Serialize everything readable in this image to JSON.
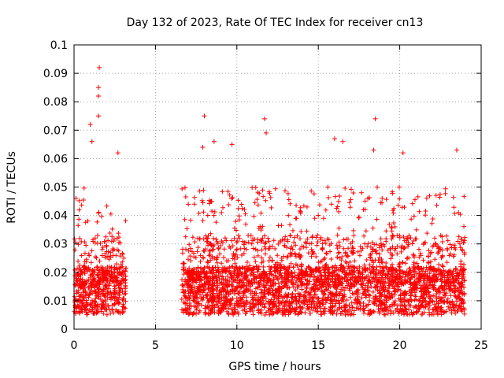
{
  "chart_data": {
    "type": "scatter",
    "title": "Day 132 of 2023, Rate Of TEC Index for receiver cn13",
    "xlabel": "GPS time / hours",
    "ylabel": "ROTI / TECUs",
    "xlim": [
      0,
      25
    ],
    "ylim": [
      0,
      0.1
    ],
    "xticks": [
      0,
      5,
      10,
      15,
      20,
      25
    ],
    "xtick_labels": [
      "0",
      "5",
      "10",
      "15",
      "20",
      "25"
    ],
    "yticks": [
      0,
      0.01,
      0.02,
      0.03,
      0.04,
      0.05,
      0.06,
      0.07,
      0.08,
      0.09,
      0.1
    ],
    "ytick_labels": [
      "0",
      "0.01",
      "0.02",
      "0.03",
      "0.04",
      "0.05",
      "0.06",
      "0.07",
      "0.08",
      "0.09",
      "0.1"
    ],
    "grid": true,
    "marker": "plus",
    "color": "#ff0000",
    "data_segments": [
      {
        "x_start": 0.0,
        "x_end": 3.2
      },
      {
        "x_start": 6.6,
        "x_end": 24.0
      }
    ],
    "highlight_points": [
      {
        "x": 1.55,
        "y": 0.092
      },
      {
        "x": 1.5,
        "y": 0.085
      },
      {
        "x": 1.5,
        "y": 0.082
      },
      {
        "x": 1.0,
        "y": 0.072
      },
      {
        "x": 1.1,
        "y": 0.066
      },
      {
        "x": 1.5,
        "y": 0.075
      },
      {
        "x": 2.7,
        "y": 0.062
      },
      {
        "x": 8.0,
        "y": 0.075
      },
      {
        "x": 7.9,
        "y": 0.064
      },
      {
        "x": 8.6,
        "y": 0.066
      },
      {
        "x": 9.7,
        "y": 0.065
      },
      {
        "x": 11.7,
        "y": 0.074
      },
      {
        "x": 11.8,
        "y": 0.069
      },
      {
        "x": 16.0,
        "y": 0.067
      },
      {
        "x": 16.5,
        "y": 0.066
      },
      {
        "x": 18.5,
        "y": 0.074
      },
      {
        "x": 18.4,
        "y": 0.063
      },
      {
        "x": 20.2,
        "y": 0.062
      },
      {
        "x": 23.5,
        "y": 0.063
      }
    ]
  }
}
